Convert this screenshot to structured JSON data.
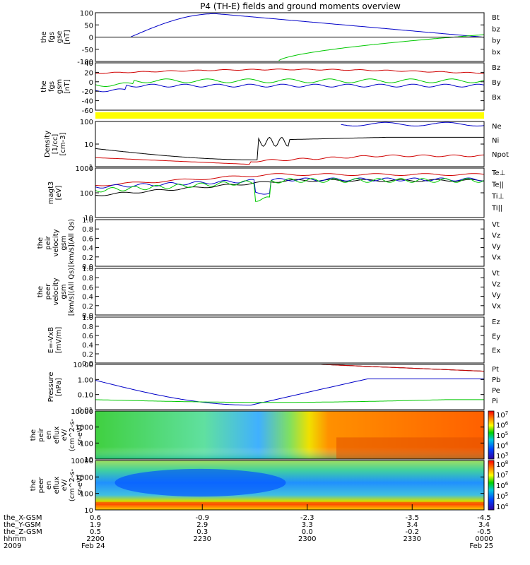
{
  "title": "P4 (TH-E) fields and ground moments overview",
  "colors": {
    "black": "#000000",
    "red": "#d00000",
    "green": "#00c800",
    "blue": "#0000c8",
    "yellow": "#ffff00"
  },
  "chart_data": [
    {
      "id": "fgs_gse",
      "type": "line",
      "ylabel": [
        "the",
        "fgs",
        "gse",
        "[nT]"
      ],
      "ylim": [
        -100,
        100
      ],
      "ticks": [
        "100",
        "50",
        "0",
        "-50",
        "-100"
      ],
      "legend": [
        {
          "name": "Bt",
          "color": "black"
        },
        {
          "name": "bz",
          "color": "red"
        },
        {
          "name": "by",
          "color": "green"
        },
        {
          "name": "bx",
          "color": "blue"
        }
      ]
    },
    {
      "id": "fgs_gsm",
      "type": "line",
      "ylabel": [
        "the",
        "fgs",
        "gsm",
        "[nT]"
      ],
      "ylim": [
        -70,
        40
      ],
      "ticks": [
        "40",
        "20",
        "0",
        "-20",
        "-40",
        "-60"
      ],
      "legend": [
        {
          "name": "Bz",
          "color": "red"
        },
        {
          "name": "By",
          "color": "green"
        },
        {
          "name": "Bx",
          "color": "blue"
        }
      ]
    },
    {
      "id": "density",
      "type": "line",
      "log": true,
      "ylabel": [
        "Density",
        "[1/cc]",
        "[cm-3]"
      ],
      "ylim": [
        0.1,
        200
      ],
      "ticks": [
        "100",
        "10",
        "1"
      ],
      "legend": [
        {
          "name": "Ne",
          "color": "red"
        },
        {
          "name": "Ni",
          "color": "black"
        },
        {
          "name": "Npot",
          "color": "blue"
        }
      ]
    },
    {
      "id": "temperature",
      "type": "line",
      "log": true,
      "ylabel": [
        "magt3",
        "[eV]"
      ],
      "ylim": [
        10,
        1200
      ],
      "ticks": [
        "1000",
        "100",
        "10"
      ],
      "legend": [
        {
          "name": "Te⊥",
          "color": "red"
        },
        {
          "name": "Te||",
          "color": "black"
        },
        {
          "name": "Ti⊥",
          "color": "blue"
        },
        {
          "name": "Ti||",
          "color": "green"
        }
      ]
    },
    {
      "id": "peir_velocity",
      "type": "line",
      "ylabel": [
        "the",
        "peir",
        "velocity",
        "gsm",
        "[km/s](All Qs)"
      ],
      "ylim": [
        0,
        1
      ],
      "ticks": [
        "1.0",
        "0.8",
        "0.6",
        "0.4",
        "0.2",
        "0.0"
      ],
      "legend": [
        {
          "name": "Vt",
          "color": "black"
        },
        {
          "name": "Vz",
          "color": "red"
        },
        {
          "name": "Vy",
          "color": "green"
        },
        {
          "name": "Vx",
          "color": "blue"
        }
      ]
    },
    {
      "id": "peer_velocity",
      "type": "line",
      "ylabel": [
        "the",
        "peer",
        "velocity",
        "gsm",
        "[km/s](All Qs)"
      ],
      "ylim": [
        0,
        1
      ],
      "ticks": [
        "1.0",
        "0.8",
        "0.6",
        "0.4",
        "0.2",
        "0.0"
      ],
      "legend": [
        {
          "name": "Vt",
          "color": "black"
        },
        {
          "name": "Vz",
          "color": "red"
        },
        {
          "name": "Vy",
          "color": "green"
        },
        {
          "name": "Vx",
          "color": "blue"
        }
      ]
    },
    {
      "id": "e_field",
      "type": "line",
      "ylabel": [
        "E=-VxB",
        "[mV/m]"
      ],
      "ylim": [
        0,
        1
      ],
      "ticks": [
        "1.0",
        "0.8",
        "0.6",
        "0.4",
        "0.2",
        "0.0"
      ],
      "legend": [
        {
          "name": "Ez",
          "color": "red"
        },
        {
          "name": "Ey",
          "color": "green"
        },
        {
          "name": "Ex",
          "color": "blue"
        }
      ]
    },
    {
      "id": "pressure",
      "type": "line",
      "log": true,
      "ylabel": [
        "Pressure",
        "[nPa]"
      ],
      "ylim": [
        0.007,
        25
      ],
      "ticks": [
        "10.00",
        "1.00",
        "0.10",
        "0.01"
      ],
      "legend": [
        {
          "name": "Pt",
          "color": "black"
        },
        {
          "name": "Pb",
          "color": "red"
        },
        {
          "name": "Pe",
          "color": "green"
        },
        {
          "name": "Pi",
          "color": "blue"
        }
      ]
    },
    {
      "id": "peir_eflux",
      "type": "heatmap",
      "ylabel": [
        "the",
        "peir",
        "en",
        "eflux",
        "eV/",
        "(cm^2-s-",
        "sr-eV)"
      ],
      "ticks": [
        "10000",
        "1000",
        "100",
        "10"
      ],
      "colorbar": [
        "10^7",
        "10^6",
        "10^5",
        "10^4",
        "10^3"
      ]
    },
    {
      "id": "peer_eflux",
      "type": "heatmap",
      "ylabel": [
        "the",
        "peer",
        "en",
        "eflux",
        "eV/",
        "(cm^2-s-",
        "sr-eV)"
      ],
      "ticks": [
        "10000",
        "1000",
        "100",
        "10"
      ],
      "colorbar": [
        "10^8",
        "10^7",
        "10^6",
        "10^5",
        "10^4"
      ]
    }
  ],
  "xaxis": {
    "rows": [
      {
        "label": "the_X-GSM",
        "values": [
          "0.6",
          "-0.9",
          "-2.3",
          "-3.5",
          "-4.5"
        ]
      },
      {
        "label": "the_Y-GSM",
        "values": [
          "1.9",
          "2.9",
          "3.3",
          "3.4",
          "3.4"
        ]
      },
      {
        "label": "the_Z-GSM",
        "values": [
          "0.5",
          "0.3",
          "0.0",
          "-0.2",
          "-0.5"
        ]
      },
      {
        "label": "hhmm",
        "values": [
          "2200",
          "2230",
          "2300",
          "2330",
          "0000"
        ]
      },
      {
        "label": "2009",
        "values": [
          "Feb 24",
          "",
          "",
          "",
          "Feb 25"
        ]
      }
    ]
  }
}
